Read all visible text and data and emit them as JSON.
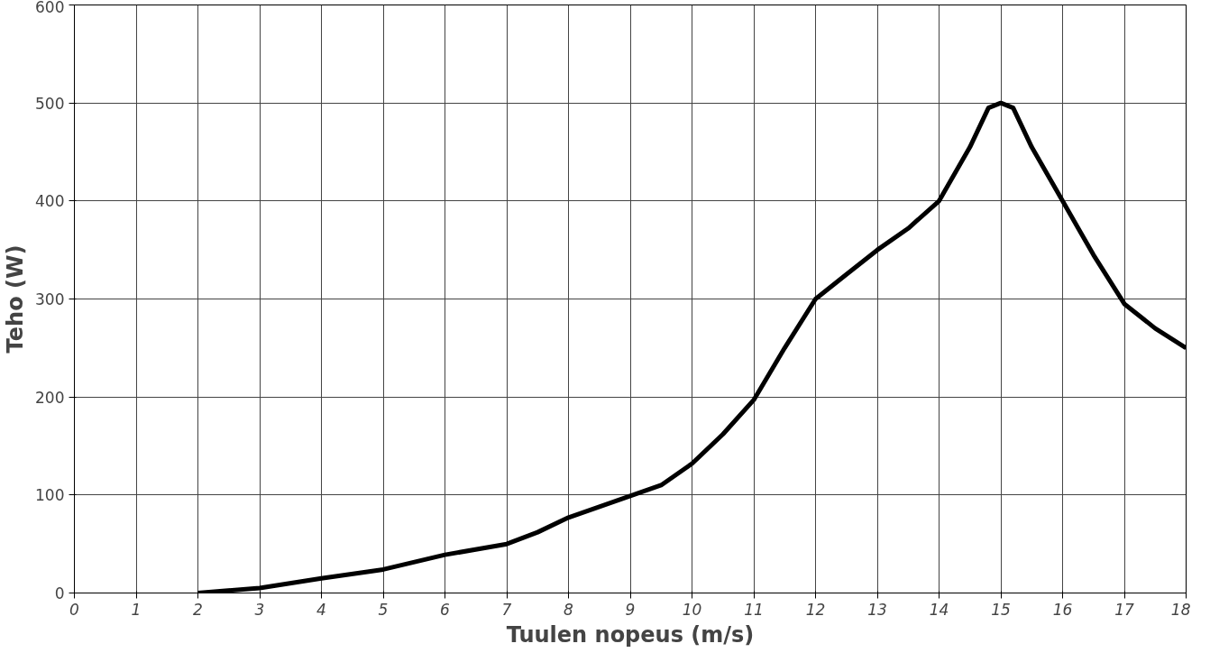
{
  "chart_data": {
    "type": "line",
    "xlabel": "Tuulen nopeus (m/s)",
    "ylabel": "Teho (W)",
    "x": [
      2,
      3,
      4,
      5,
      6,
      7,
      7.5,
      8,
      9,
      9.5,
      10,
      10.5,
      11,
      11.5,
      12,
      12.5,
      13,
      13.5,
      14,
      14.5,
      14.8,
      15,
      15.2,
      15.5,
      16,
      16.5,
      17,
      17.5,
      18
    ],
    "series": [
      {
        "color": "#000000",
        "values": [
          0,
          5,
          15,
          24,
          39,
          50,
          62,
          77,
          99,
          110,
          132,
          162,
          197,
          250,
          300,
          325,
          350,
          372,
          400,
          455,
          495,
          500,
          495,
          455,
          400,
          345,
          295,
          270,
          250
        ]
      }
    ],
    "xlim": [
      0,
      18
    ],
    "xticks": [
      0,
      1,
      2,
      3,
      4,
      5,
      6,
      7,
      8,
      9,
      10,
      11,
      12,
      13,
      14,
      15,
      16,
      17,
      18
    ],
    "ylim": [
      0,
      600
    ],
    "yticks": [
      0,
      100,
      200,
      300,
      400,
      500,
      600
    ],
    "grid": true,
    "marker": "none",
    "line_style": "solid"
  }
}
